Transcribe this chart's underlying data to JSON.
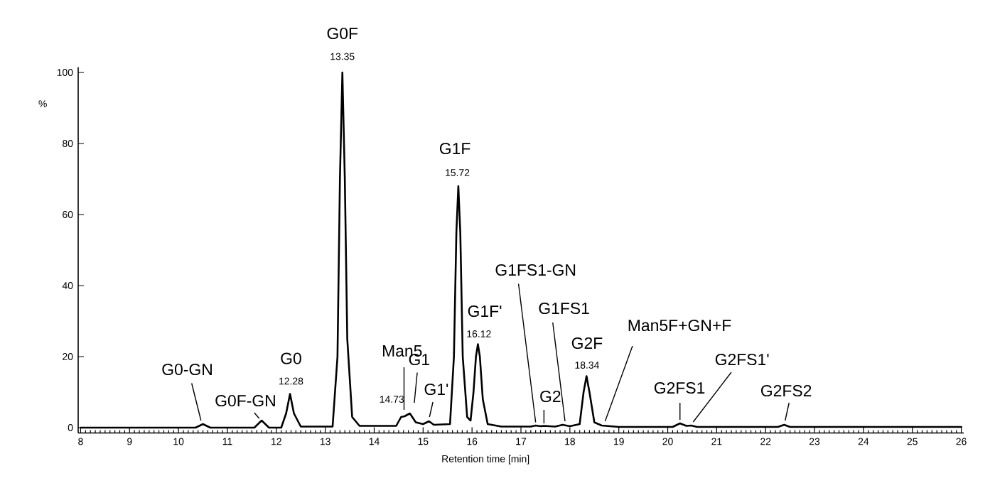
{
  "chart_data": {
    "type": "line",
    "xlabel": "Retention time [min]",
    "ylabel": "%",
    "xlim": [
      7.95,
      26.05
    ],
    "ylim": [
      -1.5,
      101.5
    ],
    "xticks": [
      8,
      9,
      10,
      11,
      12,
      13,
      14,
      15,
      16,
      17,
      18,
      19,
      20,
      21,
      22,
      23,
      24,
      25,
      26
    ],
    "yticks": [
      0,
      20,
      40,
      60,
      80,
      100
    ],
    "series": [
      {
        "color": "#000000",
        "x": [
          8,
          10.35,
          10.5,
          10.65,
          11.55,
          11.7,
          11.85,
          12.1,
          12.2,
          12.28,
          12.36,
          12.5,
          13.15,
          13.25,
          13.3,
          13.35,
          13.4,
          13.45,
          13.55,
          13.7,
          14.45,
          14.55,
          14.62,
          14.73,
          14.85,
          15.0,
          15.12,
          15.22,
          15.55,
          15.63,
          15.68,
          15.72,
          15.76,
          15.81,
          15.9,
          15.97,
          16.03,
          16.08,
          16.12,
          16.16,
          16.22,
          16.32,
          16.6,
          17.2,
          17.3,
          17.4,
          17.47,
          17.7,
          17.85,
          18.0,
          18.2,
          18.28,
          18.34,
          18.4,
          18.5,
          18.65,
          19.0,
          20.1,
          20.25,
          20.38,
          20.48,
          20.6,
          22.25,
          22.38,
          22.5,
          26
        ],
        "values": [
          0,
          0,
          1,
          0,
          0,
          2,
          0,
          0,
          4,
          9.5,
          4,
          0.3,
          0.3,
          20,
          70,
          100,
          70,
          25,
          3,
          0.5,
          0.5,
          3,
          3.2,
          4,
          1.5,
          1,
          1.8,
          0.8,
          1,
          20,
          55,
          68,
          55,
          20,
          3,
          2,
          10,
          20,
          23.5,
          20,
          8,
          1,
          0.3,
          0.3,
          0.6,
          0.4,
          0.5,
          0.3,
          0.8,
          0.4,
          1,
          10,
          14.5,
          10,
          1.5,
          0.6,
          0.2,
          0.2,
          1.2,
          0.5,
          0.6,
          0.2,
          0.2,
          0.8,
          0.2,
          0.2
        ]
      }
    ],
    "annotations": [
      {
        "text": "G0-GN",
        "x": 10.5,
        "y": 1
      },
      {
        "text": "G0F-GN",
        "x": 11.7,
        "y": 2
      },
      {
        "text": "G0",
        "x": 12.28,
        "y": 9.5
      },
      {
        "text": "12.28",
        "x": 12.28,
        "y": 9.5
      },
      {
        "text": "G0F",
        "x": 13.35,
        "y": 100
      },
      {
        "text": "13.35",
        "x": 13.35,
        "y": 100
      },
      {
        "text": "Man5",
        "x": 14.55,
        "y": 3
      },
      {
        "text": "G1",
        "x": 14.73,
        "y": 4
      },
      {
        "text": "14.73",
        "x": 14.73,
        "y": 4
      },
      {
        "text": "G1'",
        "x": 15.12,
        "y": 1.8
      },
      {
        "text": "G1F",
        "x": 15.72,
        "y": 68
      },
      {
        "text": "15.72",
        "x": 15.72,
        "y": 68
      },
      {
        "text": "G1F'",
        "x": 16.12,
        "y": 23.5
      },
      {
        "text": "16.12",
        "x": 16.12,
        "y": 23.5
      },
      {
        "text": "G1FS1-GN",
        "x": 17.3,
        "y": 0.6
      },
      {
        "text": "G2",
        "x": 17.47,
        "y": 0.5
      },
      {
        "text": "G1FS1",
        "x": 17.85,
        "y": 0.8
      },
      {
        "text": "G2F",
        "x": 18.34,
        "y": 14.5
      },
      {
        "text": "18.34",
        "x": 18.34,
        "y": 14.5
      },
      {
        "text": "Man5F+GN+F",
        "x": 18.65,
        "y": 0.6
      },
      {
        "text": "G2FS1",
        "x": 20.25,
        "y": 1.2
      },
      {
        "text": "G2FS1'",
        "x": 20.48,
        "y": 0.6
      },
      {
        "text": "G2FS2",
        "x": 22.38,
        "y": 0.8
      }
    ]
  }
}
